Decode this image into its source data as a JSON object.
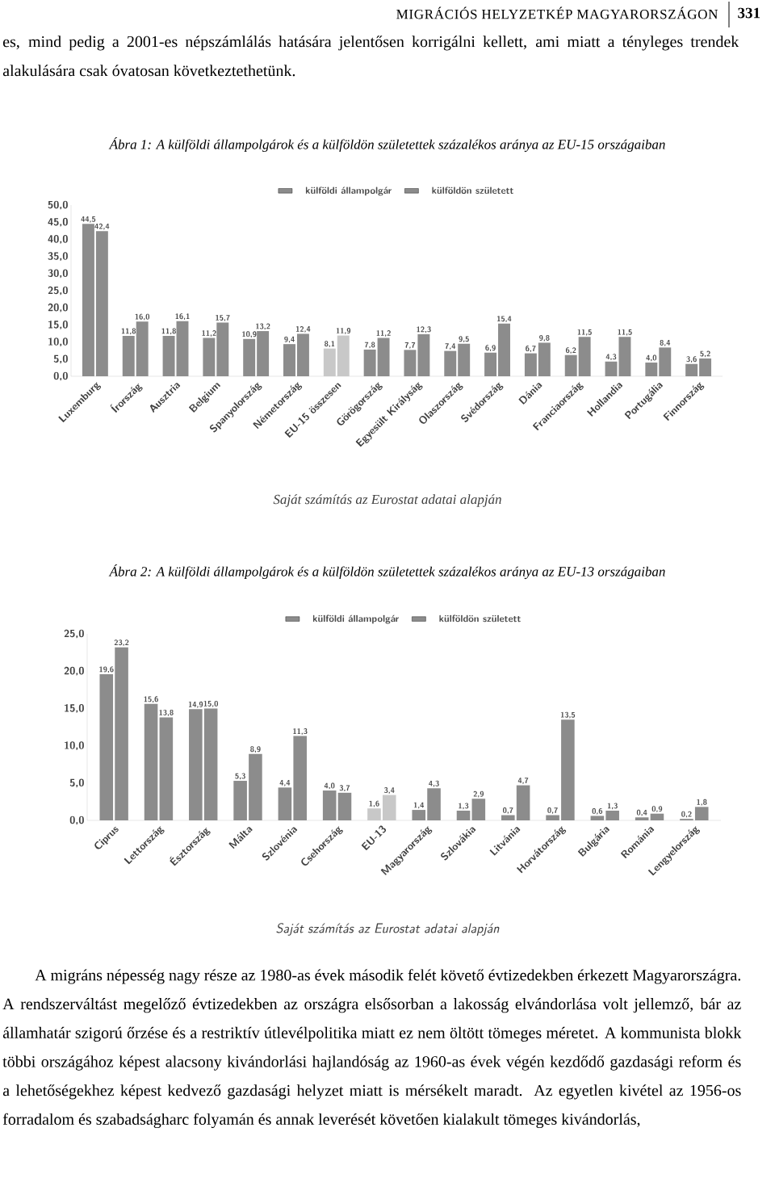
{
  "chart_data": [
    {
      "type": "bar",
      "title": "Ábra 1: A külföldi állampolgárok és a külföldön születettek százalékos aránya az EU-15 országaiban",
      "categories": [
        "Luxemburg",
        "Írország",
        "Ausztria",
        "Belgium",
        "Spanyolország",
        "Németország",
        "EU-15 összesen",
        "Görögország",
        "Egyesült Királyság",
        "Olaszország",
        "Svédország",
        "Dánia",
        "Franciaország",
        "Hollandia",
        "Portugália",
        "Finnország"
      ],
      "series": [
        {
          "name": "külföldi állampolgár",
          "color": "#8c8c8c",
          "colors": [
            "#8c8c8c",
            "#8c8c8c",
            "#8c8c8c",
            "#8c8c8c",
            "#8c8c8c",
            "#8c8c8c",
            "#c8c8c8",
            "#8c8c8c",
            "#8c8c8c",
            "#8c8c8c",
            "#8c8c8c",
            "#8c8c8c",
            "#8c8c8c",
            "#8c8c8c",
            "#8c8c8c",
            "#8c8c8c"
          ],
          "values": [
            44.5,
            11.8,
            11.8,
            11.2,
            10.9,
            9.4,
            8.1,
            7.8,
            7.7,
            7.4,
            6.9,
            6.7,
            6.2,
            4.3,
            4.0,
            3.6
          ],
          "value_labels": [
            "44,5",
            "11,8",
            "11,8",
            "11,2",
            "10,9",
            "9,4",
            "8,1",
            "7,8",
            "7,7",
            "7,4",
            "6,9",
            "6,7",
            "6,2",
            "4,3",
            "4,0",
            "3,6"
          ]
        },
        {
          "name": "külföldön született",
          "color": "#8c8c8c",
          "colors": [
            "#8c8c8c",
            "#8c8c8c",
            "#8c8c8c",
            "#8c8c8c",
            "#8c8c8c",
            "#8c8c8c",
            "#c8c8c8",
            "#8c8c8c",
            "#8c8c8c",
            "#8c8c8c",
            "#8c8c8c",
            "#8c8c8c",
            "#8c8c8c",
            "#8c8c8c",
            "#8c8c8c",
            "#8c8c8c"
          ],
          "values": [
            42.4,
            16.0,
            16.1,
            15.7,
            13.2,
            12.4,
            11.9,
            11.2,
            12.3,
            9.5,
            15.4,
            9.8,
            11.5,
            11.5,
            8.4,
            5.2
          ],
          "value_labels": [
            "42,4",
            "16,0",
            "16,1",
            "15,7",
            "13,2",
            "12,4",
            "11,9",
            "11,2",
            "12,3",
            "9,5",
            "15,4",
            "9,8",
            "11,5",
            "11,5",
            "8,4",
            "5,2"
          ]
        }
      ],
      "ylim": [
        0,
        50
      ],
      "yticks": [
        {
          "value": 0,
          "label": "0,0"
        },
        {
          "value": 5,
          "label": "5,0"
        },
        {
          "value": 10,
          "label": "10,0"
        },
        {
          "value": 15,
          "label": "15,0"
        },
        {
          "value": 20,
          "label": "20,0"
        },
        {
          "value": 25,
          "label": "25,0"
        },
        {
          "value": 30,
          "label": "30,0"
        },
        {
          "value": 35,
          "label": "35,0"
        },
        {
          "value": 40,
          "label": "40,0"
        },
        {
          "value": 45,
          "label": "45,0"
        },
        {
          "value": 50,
          "label": "50,0"
        }
      ],
      "grid": false,
      "legend": "top",
      "annotations": [
        "MIGRÁCIÓS HELYZETKÉP MAGYARORSZÁGON",
        "331",
        "es, mind pedig a 2001-es népszámlálás hatására jelentősen korrigálni kellett, ami miatt a tényleges trendek alakulására csak óvatosan következtethetünk.",
        "Saját számítás az Eurostat adatai alapján"
      ]
    },
    {
      "type": "bar",
      "title": "Ábra 2: A külföldi állampolgárok és a külföldön születettek százalékos aránya az EU-13 országaiban",
      "categories": [
        "Ciprus",
        "Lettország",
        "Észtország",
        "Málta",
        "Szlovénia",
        "Csehország",
        "EU-13",
        "Magyarország",
        "Szlovákia",
        "Litvánia",
        "Horvátország",
        "Bulgária",
        "Románia",
        "Lengyelország"
      ],
      "series": [
        {
          "name": "külföldi állampolgár",
          "color": "#8c8c8c",
          "colors": [
            "#8c8c8c",
            "#8c8c8c",
            "#8c8c8c",
            "#8c8c8c",
            "#8c8c8c",
            "#8c8c8c",
            "#c8c8c8",
            "#8c8c8c",
            "#8c8c8c",
            "#8c8c8c",
            "#8c8c8c",
            "#8c8c8c",
            "#8c8c8c",
            "#8c8c8c"
          ],
          "values": [
            19.6,
            15.6,
            14.9,
            5.3,
            4.4,
            4.0,
            1.6,
            1.4,
            1.3,
            0.7,
            0.7,
            0.6,
            0.4,
            0.2
          ],
          "value_labels": [
            "19,6",
            "15,6",
            "14,9",
            "5,3",
            "4,4",
            "4,0",
            "1,6",
            "1,4",
            "1,3",
            "0,7",
            "0,7",
            "0,6",
            "0,4",
            "0,2"
          ]
        },
        {
          "name": "külföldön született",
          "color": "#8c8c8c",
          "colors": [
            "#8c8c8c",
            "#8c8c8c",
            "#8c8c8c",
            "#8c8c8c",
            "#8c8c8c",
            "#8c8c8c",
            "#c8c8c8",
            "#8c8c8c",
            "#8c8c8c",
            "#8c8c8c",
            "#8c8c8c",
            "#8c8c8c",
            "#8c8c8c",
            "#8c8c8c"
          ],
          "values": [
            23.2,
            13.8,
            15.0,
            8.9,
            11.3,
            3.7,
            3.4,
            4.3,
            2.9,
            4.7,
            13.5,
            1.3,
            0.9,
            1.8
          ],
          "value_labels": [
            "23,2",
            "13,8",
            "15,0",
            "8,9",
            "11,3",
            "3,7",
            "3,4",
            "4,3",
            "2,9",
            "4,7",
            "13,5",
            "1,3",
            "0,9",
            "1,8"
          ]
        }
      ],
      "ylim": [
        0,
        25
      ],
      "yticks": [
        {
          "value": 0,
          "label": "0,0"
        },
        {
          "value": 5,
          "label": "5,0"
        },
        {
          "value": 10,
          "label": "10,0"
        },
        {
          "value": 15,
          "label": "15,0"
        },
        {
          "value": 20,
          "label": "20,0"
        },
        {
          "value": 25,
          "label": "25,0"
        }
      ],
      "grid": false,
      "legend": "top",
      "annotations": [
        "Saját számítás az Eurostat adatai alapján",
        "A migráns népesség nagy része az 1980-as évek második felét követő évtizedekben érkezett Magyarországra. A rendszerváltást megelőző évtizedekben az országra elsősorban a lakosság elvándorlása volt jellemző, bár az államhatár szigorú őrzése és a restriktív útlevélpolitika miatt ez nem öltött tömeges méretet. A kommunista blokk többi országához képest alacsony kivándorlási hajlandóság az 1960-as évek végén kezdődő gazdasági reform és a lehetőségekhez képest kedvező gazdasági helyzet miatt is mérsékelt maradt. Az egyetlen kivétel az 1956-os forradalom és szabadságharc folyamán és annak leverését követően kialakult tömeges kivándorlás,"
      ]
    }
  ]
}
